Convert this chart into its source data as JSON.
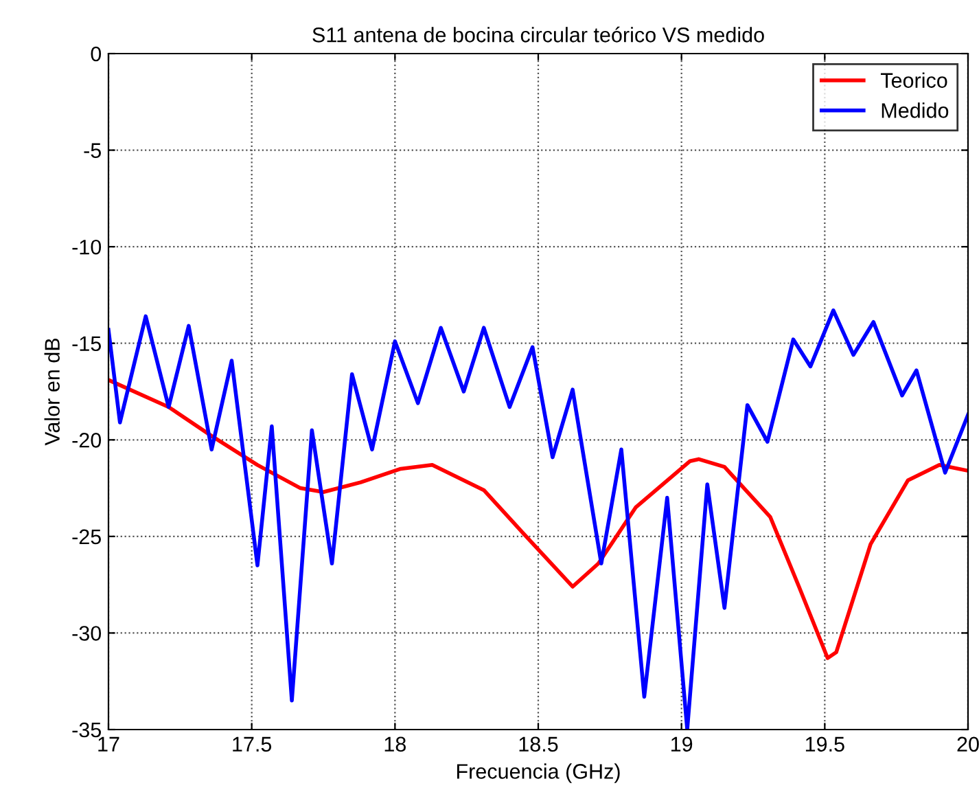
{
  "chart_data": {
    "type": "line",
    "title": "S11 antena de bocina circular teórico VS medido",
    "xlabel": "Frecuencia (GHz)",
    "ylabel": "Valor en dB",
    "xlim": [
      17,
      20
    ],
    "xticks": [
      17,
      17.5,
      18,
      18.5,
      19,
      19.5,
      20
    ],
    "ylim": [
      -35,
      0
    ],
    "yticks": [
      -35,
      -30,
      -25,
      -20,
      -15,
      -10,
      -5,
      0
    ],
    "grid": true,
    "legend": "top right",
    "series": [
      {
        "name": "Teorico",
        "color": "#ff0000",
        "x": [
          17,
          17.21,
          17.36,
          17.52,
          17.67,
          17.75,
          17.88,
          18.02,
          18.13,
          18.31,
          18.47,
          18.62,
          18.71,
          18.84,
          19.03,
          19.06,
          19.15,
          19.31,
          19.41,
          19.51,
          19.54,
          19.66,
          19.79,
          19.9,
          20
        ],
        "values": [
          -16.9,
          -18.3,
          -19.8,
          -21.3,
          -22.5,
          -22.7,
          -22.2,
          -21.5,
          -21.3,
          -22.6,
          -25.2,
          -27.6,
          -26.4,
          -23.5,
          -21.1,
          -21.0,
          -21.4,
          -24.0,
          -27.6,
          -31.3,
          -31.0,
          -25.4,
          -22.1,
          -21.3,
          -21.6
        ]
      },
      {
        "name": "Medido",
        "color": "#0000ff",
        "x": [
          17,
          17.04,
          17.13,
          17.21,
          17.28,
          17.36,
          17.43,
          17.52,
          17.57,
          17.64,
          17.71,
          17.78,
          17.85,
          17.92,
          18.0,
          18.08,
          18.16,
          18.24,
          18.31,
          18.4,
          18.48,
          18.55,
          18.62,
          18.72,
          18.79,
          18.87,
          18.95,
          19.02,
          19.09,
          19.15,
          19.23,
          19.3,
          19.39,
          19.45,
          19.53,
          19.6,
          19.67,
          19.77,
          19.82,
          19.92,
          20
        ],
        "values": [
          -14.3,
          -19.1,
          -13.6,
          -18.3,
          -14.1,
          -20.5,
          -15.9,
          -26.5,
          -19.3,
          -33.5,
          -19.5,
          -26.4,
          -16.6,
          -20.5,
          -14.9,
          -18.1,
          -14.2,
          -17.5,
          -14.2,
          -18.3,
          -15.2,
          -20.9,
          -17.4,
          -26.4,
          -20.5,
          -33.3,
          -23.0,
          -35,
          -22.3,
          -28.7,
          -18.2,
          -20.1,
          -14.8,
          -16.2,
          -13.3,
          -15.6,
          -13.9,
          -17.7,
          -16.4,
          -21.7,
          -18.7
        ]
      }
    ]
  }
}
